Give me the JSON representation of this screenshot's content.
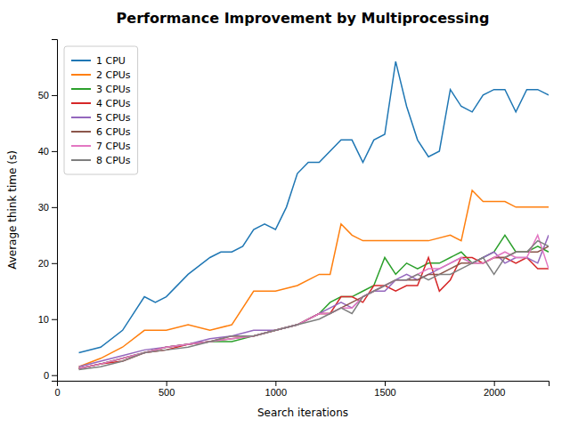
{
  "chart_data": {
    "type": "line",
    "title": "Performance Improvement by Multiprocessing",
    "x_label": "Search iterations",
    "y_label": "Average think time (s)",
    "series": [
      {
        "name": "1 CPU",
        "color": "#1f77b4",
        "x": [
          100,
          200,
          300,
          400,
          450,
          500,
          600,
          700,
          750,
          800,
          850,
          900,
          950,
          1000,
          1050,
          1100,
          1150,
          1200,
          1300,
          1350,
          1400,
          1450,
          1500,
          1550,
          1600,
          1650,
          1700,
          1750,
          1800,
          1850,
          1900,
          1950,
          2000,
          2050,
          2100,
          2150,
          2200,
          2250
        ],
        "values": [
          4,
          5,
          8,
          14,
          13,
          14,
          18,
          21,
          22,
          22,
          23,
          26,
          27,
          26,
          30,
          36,
          38,
          38,
          42,
          42,
          38,
          42,
          43,
          56,
          48,
          42,
          39,
          40,
          51,
          48,
          47,
          50,
          51,
          51,
          47,
          51,
          51,
          50
        ]
      },
      {
        "name": "2 CPUs",
        "color": "#ff7f0e",
        "x": [
          100,
          200,
          300,
          400,
          500,
          600,
          700,
          800,
          900,
          1000,
          1100,
          1200,
          1250,
          1300,
          1350,
          1400,
          1450,
          1500,
          1600,
          1700,
          1800,
          1850,
          1900,
          1950,
          2000,
          2050,
          2100,
          2150,
          2200,
          2250
        ],
        "values": [
          1.5,
          3,
          5,
          8,
          8,
          9,
          8,
          9,
          15,
          15,
          16,
          18,
          18,
          27,
          25,
          24,
          24,
          24,
          24,
          24,
          25,
          24,
          33,
          31,
          31,
          31,
          30,
          30,
          30,
          30
        ]
      },
      {
        "name": "3 CPUs",
        "color": "#2ca02c",
        "x": [
          100,
          200,
          300,
          400,
          500,
          600,
          700,
          800,
          900,
          1000,
          1100,
          1200,
          1250,
          1300,
          1350,
          1400,
          1450,
          1500,
          1550,
          1600,
          1650,
          1700,
          1750,
          1800,
          1850,
          1900,
          1950,
          2000,
          2050,
          2100,
          2150,
          2200,
          2250
        ],
        "values": [
          1.2,
          2,
          3,
          4,
          5,
          5.5,
          6,
          6,
          7,
          8,
          9,
          11,
          13,
          14,
          14,
          15,
          16,
          21,
          18,
          20,
          19,
          20,
          20,
          21,
          22,
          20,
          21,
          22,
          25,
          22,
          22,
          23,
          22
        ]
      },
      {
        "name": "4 CPUs",
        "color": "#d62728",
        "x": [
          100,
          200,
          300,
          400,
          500,
          600,
          700,
          800,
          900,
          1000,
          1100,
          1200,
          1250,
          1300,
          1350,
          1400,
          1450,
          1500,
          1550,
          1600,
          1650,
          1700,
          1750,
          1800,
          1850,
          1900,
          1950,
          2000,
          2050,
          2100,
          2150,
          2200,
          2250
        ],
        "values": [
          1.2,
          2,
          2.5,
          4,
          4.5,
          5.5,
          6,
          7,
          7,
          8,
          9,
          11,
          11,
          14,
          14,
          13,
          16,
          16,
          15,
          16,
          16,
          21,
          15,
          17,
          21,
          21,
          20,
          21,
          21,
          20,
          21,
          19,
          19
        ]
      },
      {
        "name": "5 CPUs",
        "color": "#9467bd",
        "x": [
          100,
          200,
          300,
          400,
          500,
          600,
          700,
          800,
          900,
          1000,
          1100,
          1200,
          1250,
          1300,
          1350,
          1400,
          1450,
          1500,
          1550,
          1600,
          1650,
          1700,
          1750,
          1800,
          1850,
          1900,
          1950,
          2000,
          2050,
          2100,
          2150,
          2200,
          2250
        ],
        "values": [
          1.5,
          2.5,
          3.5,
          4.5,
          5,
          5.5,
          6.5,
          7,
          8,
          8,
          9,
          11,
          12,
          13,
          12,
          14,
          15,
          15,
          17,
          18,
          17,
          18,
          19,
          20,
          21,
          20,
          21,
          22,
          20,
          21,
          21,
          20,
          25
        ]
      },
      {
        "name": "6 CPUs",
        "color": "#8c564b",
        "x": [
          100,
          200,
          300,
          400,
          500,
          600,
          700,
          800,
          900,
          1000,
          1100,
          1200,
          1250,
          1300,
          1350,
          1400,
          1450,
          1500,
          1550,
          1600,
          1650,
          1700,
          1750,
          1800,
          1850,
          1900,
          1950,
          2000,
          2050,
          2100,
          2150,
          2200,
          2250
        ],
        "values": [
          1.2,
          2,
          3,
          4,
          5,
          5.5,
          6,
          6.5,
          7,
          8,
          9,
          11,
          11,
          12,
          13,
          14,
          15,
          16,
          17,
          17,
          17,
          18,
          18,
          19,
          20,
          20,
          20,
          21,
          21,
          22,
          22,
          22,
          23
        ]
      },
      {
        "name": "7 CPUs",
        "color": "#e377c2",
        "x": [
          100,
          200,
          300,
          400,
          500,
          600,
          700,
          800,
          900,
          1000,
          1100,
          1200,
          1250,
          1300,
          1350,
          1400,
          1450,
          1500,
          1550,
          1600,
          1650,
          1700,
          1750,
          1800,
          1850,
          1900,
          1950,
          2000,
          2050,
          2100,
          2150,
          2200,
          2250
        ],
        "values": [
          1.2,
          2,
          3,
          4,
          5,
          5.5,
          6,
          6.5,
          7,
          8,
          9,
          11,
          11,
          12,
          12,
          14,
          15,
          16,
          17,
          17,
          18,
          19,
          19,
          20,
          21,
          20,
          20,
          21,
          22,
          21,
          21,
          25,
          19
        ]
      },
      {
        "name": "8 CPUs",
        "color": "#7f7f7f",
        "x": [
          100,
          200,
          300,
          400,
          500,
          600,
          700,
          800,
          900,
          1000,
          1100,
          1200,
          1250,
          1300,
          1350,
          1400,
          1450,
          1500,
          1550,
          1600,
          1650,
          1700,
          1750,
          1800,
          1850,
          1900,
          1950,
          2000,
          2050,
          2100,
          2150,
          2200,
          2250
        ],
        "values": [
          1,
          1.5,
          2.5,
          4,
          4.5,
          5,
          6,
          7,
          7,
          8,
          9,
          10,
          11,
          12,
          11,
          14,
          15,
          16,
          17,
          17,
          18,
          17,
          18,
          18,
          19,
          20,
          21,
          18,
          21,
          22,
          22,
          24,
          23
        ]
      }
    ],
    "xlim": [
      0,
      2250
    ],
    "ylim": [
      -1,
      60
    ],
    "xticks": [
      0,
      500,
      1000,
      1500,
      2000
    ],
    "yticks": [
      0,
      10,
      20,
      30,
      40,
      50
    ],
    "legend": "top-left",
    "grid": false
  }
}
